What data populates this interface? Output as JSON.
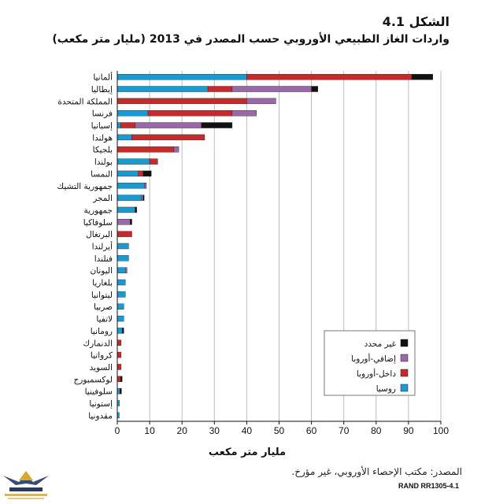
{
  "figure": {
    "number": "الشكل 4.1",
    "title": "واردات الغاز الطبيعي الأوروبي حسب المصدر في 2013 (مليار متر مكعب)",
    "source": "المصدر: مكتب الإحصاء الأوروبي، غير مؤرخ.",
    "report_id": "RAND RR1305-4.1"
  },
  "chart_data": {
    "type": "bar",
    "orientation": "horizontal",
    "stacked": true,
    "xlabel": "مليار متر مكعب",
    "xlim": [
      0,
      100
    ],
    "xticks": [
      0,
      10,
      20,
      30,
      40,
      50,
      60,
      70,
      80,
      90,
      100
    ],
    "grid": true,
    "legend_position": "bottom-right",
    "categories": [
      "ألمانيا",
      "إيطاليا",
      "المملكة المتحدة",
      "فرنسا",
      "إسبانيا",
      "هولندا",
      "بلجيكا",
      "بولندا",
      "النمسا",
      "جمهورية التشيك",
      "المجر",
      "جمهورية",
      "سلوفاكيا",
      "البرتغال",
      "أيرلندا",
      "فنلندا",
      "اليونان",
      "بلغاريا",
      "ليتوانيا",
      "صربيا",
      "لاتفيا",
      "رومانيا",
      "الدنمارك",
      "كرواتيا",
      "السويد",
      "لوكسمبورج",
      "سلوفينيا",
      "إستونيا",
      "مقدونيا"
    ],
    "series": [
      {
        "name": "روسيا",
        "color": "#1a9ad0",
        "values": [
          40,
          28,
          0,
          9.5,
          1,
          4.5,
          0,
          10,
          6.5,
          8.5,
          7.5,
          5.5,
          0,
          0,
          3.5,
          3.5,
          2.5,
          2.5,
          2.5,
          2,
          2,
          1.5,
          0,
          0,
          0,
          0,
          0.8,
          0.7,
          0.6
        ]
      },
      {
        "name": "داخل-أوروبا",
        "color": "#c42b2b",
        "values": [
          51,
          7.5,
          40,
          26,
          4.5,
          22.5,
          17.5,
          2.5,
          1.5,
          0,
          0,
          0,
          0,
          4.5,
          0,
          0,
          0,
          0,
          0,
          0,
          0,
          0,
          1.2,
          1.2,
          1.2,
          1,
          0,
          0,
          0
        ]
      },
      {
        "name": "إضافي-أوروبا",
        "color": "#9a68a8",
        "values": [
          0,
          24.5,
          9,
          7.5,
          20.5,
          0,
          1.5,
          0,
          0,
          0.5,
          0.5,
          0,
          4,
          0,
          0,
          0,
          0.5,
          0,
          0,
          0,
          0,
          0,
          0,
          0,
          0,
          0,
          0,
          0,
          0
        ]
      },
      {
        "name": "غير محدد",
        "color": "#111111",
        "values": [
          6.5,
          2,
          0,
          0,
          9.5,
          0,
          0,
          0,
          2.5,
          0,
          0.3,
          0.5,
          0.5,
          0,
          0,
          0,
          0,
          0,
          0,
          0,
          0,
          0.5,
          0,
          0,
          0,
          0.5,
          0.5,
          0,
          0
        ]
      }
    ]
  }
}
